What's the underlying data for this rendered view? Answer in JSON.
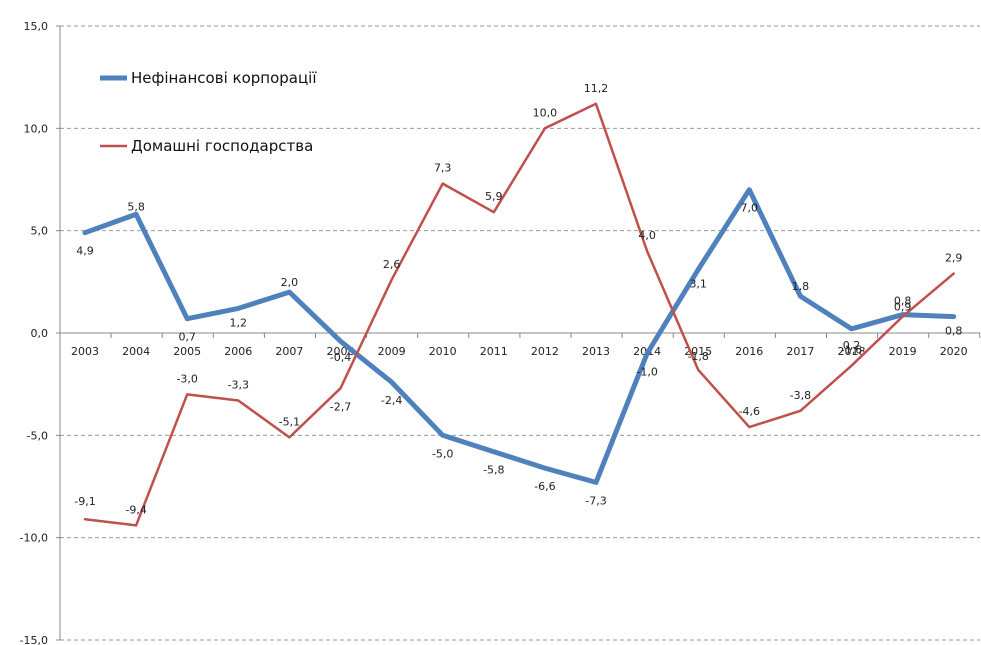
{
  "chart_data": {
    "type": "line",
    "categories": [
      "2003",
      "2004",
      "2005",
      "2006",
      "2007",
      "2008",
      "2009",
      "2010",
      "2011",
      "2012",
      "2013",
      "2014",
      "2015",
      "2016",
      "2017",
      "2018",
      "2019",
      "2020"
    ],
    "y_ticks": [
      "15,0",
      "10,0",
      "5,0",
      "0,0",
      "-5,0",
      "-10,0",
      "-15,0"
    ],
    "ylim": [
      -15,
      15
    ],
    "grid": "horizontal dashed",
    "legend_position": "top-left",
    "series": [
      {
        "name": "Нефінансові корпорації",
        "color": "#4f81bd",
        "values": [
          4.9,
          5.8,
          0.7,
          1.2,
          2.0,
          -0.4,
          -2.4,
          -5.0,
          -5.8,
          -6.6,
          -7.3,
          -1.0,
          3.1,
          7.0,
          1.8,
          0.2,
          0.9,
          0.8
        ],
        "labels": [
          "4,9",
          "5,8",
          "0,7",
          "1,2",
          "2,0",
          "-0,4",
          "-2,4",
          "-5,0",
          "-5,8",
          "-6,6",
          "-7,3",
          "-1,0",
          "3,1",
          "7,0",
          "1,8",
          "0,2",
          "0,9",
          "0,8"
        ]
      },
      {
        "name": "Домашні господарства",
        "color": "#c0504d",
        "values": [
          -9.1,
          -9.4,
          -3.0,
          -3.3,
          -5.1,
          -2.7,
          2.6,
          7.3,
          5.9,
          10.0,
          11.2,
          4.0,
          -1.8,
          -4.6,
          -3.8,
          -1.6,
          0.8,
          2.9
        ],
        "labels": [
          "-9,1",
          "-9,4",
          "-3,0",
          "-3,3",
          "-5,1",
          "-2,7",
          "2,6",
          "7,3",
          "5,9",
          "10,0",
          "11,2",
          "4,0",
          "-1,8",
          "-4,6",
          "-3,8",
          "-1,6",
          "0,8",
          "2,9"
        ]
      }
    ]
  }
}
